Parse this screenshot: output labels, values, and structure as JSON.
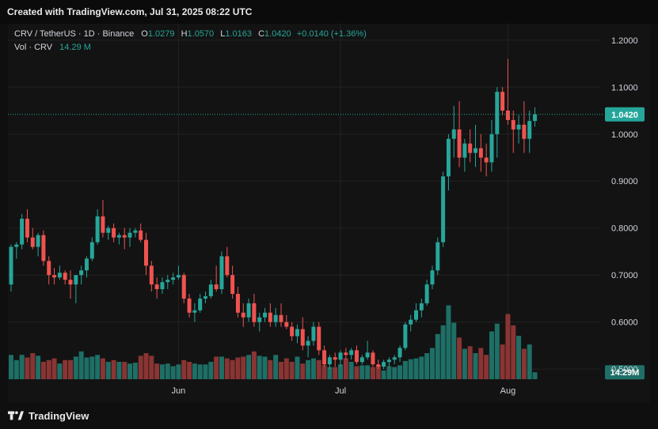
{
  "header": {
    "created_text": "Created with TradingView.com, Jul 31, 2025 08:22 UTC"
  },
  "legend": {
    "symbol": "CRV / TetherUS · 1D · Binance",
    "o_label": "O",
    "o_value": "1.0279",
    "h_label": "H",
    "h_value": "1.0570",
    "l_label": "L",
    "l_value": "1.0163",
    "c_label": "C",
    "c_value": "1.0420",
    "change": "+0.0140 (+1.36%)",
    "vol_label": "Vol · CRV",
    "vol_value": "14.29 M"
  },
  "footer": {
    "brand": "TradingView"
  },
  "colors": {
    "up": "#26a69a",
    "down": "#ef5350",
    "vol_up": "#1e6f66",
    "vol_down": "#8a3434",
    "grid": "#222222",
    "price_line": "#26a69a"
  },
  "chart_data": {
    "type": "candlestick",
    "symbol": "CRV / TetherUS",
    "interval": "1D",
    "exchange": "Binance",
    "y_ticks": [
      "1.2000",
      "1.1000",
      "1.0000",
      "0.9000",
      "0.8000",
      "0.7000",
      "0.6000",
      "0.5000"
    ],
    "ylim": [
      0.475,
      1.235
    ],
    "x_ticks": [
      {
        "label": "Jun",
        "index": 31
      },
      {
        "label": "Jul",
        "index": 61
      },
      {
        "label": "Aug",
        "index": 92
      }
    ],
    "last_price_label": "1.0420",
    "last_price": 1.042,
    "last_volume_label": "14.29M",
    "volume_max": 1.0,
    "candles": [
      [
        0.68,
        0.765,
        0.665,
        0.76,
        0.28
      ],
      [
        0.76,
        0.77,
        0.735,
        0.765,
        0.22
      ],
      [
        0.765,
        0.83,
        0.755,
        0.82,
        0.28
      ],
      [
        0.82,
        0.84,
        0.77,
        0.78,
        0.25
      ],
      [
        0.78,
        0.8,
        0.755,
        0.76,
        0.3
      ],
      [
        0.76,
        0.79,
        0.74,
        0.785,
        0.27
      ],
      [
        0.785,
        0.795,
        0.72,
        0.73,
        0.2
      ],
      [
        0.73,
        0.74,
        0.68,
        0.7,
        0.22
      ],
      [
        0.7,
        0.715,
        0.68,
        0.695,
        0.24
      ],
      [
        0.695,
        0.72,
        0.69,
        0.705,
        0.18
      ],
      [
        0.705,
        0.71,
        0.68,
        0.69,
        0.22
      ],
      [
        0.69,
        0.71,
        0.65,
        0.68,
        0.22
      ],
      [
        0.68,
        0.7,
        0.64,
        0.7,
        0.26
      ],
      [
        0.7,
        0.72,
        0.68,
        0.71,
        0.32
      ],
      [
        0.71,
        0.74,
        0.695,
        0.735,
        0.25
      ],
      [
        0.735,
        0.78,
        0.73,
        0.77,
        0.26
      ],
      [
        0.77,
        0.84,
        0.765,
        0.825,
        0.28
      ],
      [
        0.825,
        0.86,
        0.78,
        0.79,
        0.24
      ],
      [
        0.79,
        0.805,
        0.775,
        0.8,
        0.2
      ],
      [
        0.8,
        0.81,
        0.77,
        0.78,
        0.22
      ],
      [
        0.78,
        0.79,
        0.765,
        0.785,
        0.2
      ],
      [
        0.785,
        0.8,
        0.755,
        0.78,
        0.2
      ],
      [
        0.78,
        0.8,
        0.76,
        0.79,
        0.18
      ],
      [
        0.79,
        0.8,
        0.78,
        0.795,
        0.19
      ],
      [
        0.795,
        0.81,
        0.77,
        0.775,
        0.27
      ],
      [
        0.775,
        0.79,
        0.7,
        0.72,
        0.3
      ],
      [
        0.72,
        0.73,
        0.665,
        0.68,
        0.27
      ],
      [
        0.68,
        0.695,
        0.65,
        0.67,
        0.18
      ],
      [
        0.67,
        0.695,
        0.66,
        0.685,
        0.17
      ],
      [
        0.685,
        0.7,
        0.67,
        0.69,
        0.18
      ],
      [
        0.69,
        0.705,
        0.68,
        0.695,
        0.15
      ],
      [
        0.695,
        0.72,
        0.69,
        0.7,
        0.17
      ],
      [
        0.7,
        0.705,
        0.64,
        0.65,
        0.22
      ],
      [
        0.65,
        0.66,
        0.61,
        0.62,
        0.2
      ],
      [
        0.62,
        0.64,
        0.6,
        0.625,
        0.18
      ],
      [
        0.625,
        0.66,
        0.62,
        0.65,
        0.17
      ],
      [
        0.65,
        0.665,
        0.64,
        0.655,
        0.17
      ],
      [
        0.655,
        0.69,
        0.65,
        0.68,
        0.2
      ],
      [
        0.68,
        0.72,
        0.665,
        0.67,
        0.26
      ],
      [
        0.67,
        0.75,
        0.66,
        0.74,
        0.26
      ],
      [
        0.74,
        0.76,
        0.695,
        0.7,
        0.24
      ],
      [
        0.7,
        0.72,
        0.65,
        0.66,
        0.22
      ],
      [
        0.66,
        0.675,
        0.61,
        0.62,
        0.25
      ],
      [
        0.62,
        0.64,
        0.59,
        0.61,
        0.26
      ],
      [
        0.61,
        0.65,
        0.6,
        0.64,
        0.28
      ],
      [
        0.64,
        0.66,
        0.59,
        0.6,
        0.32
      ],
      [
        0.6,
        0.62,
        0.58,
        0.61,
        0.27
      ],
      [
        0.61,
        0.63,
        0.6,
        0.62,
        0.26
      ],
      [
        0.62,
        0.64,
        0.59,
        0.6,
        0.22
      ],
      [
        0.6,
        0.63,
        0.59,
        0.615,
        0.28
      ],
      [
        0.615,
        0.64,
        0.59,
        0.6,
        0.2
      ],
      [
        0.6,
        0.615,
        0.585,
        0.59,
        0.24
      ],
      [
        0.59,
        0.6,
        0.56,
        0.57,
        0.2
      ],
      [
        0.57,
        0.595,
        0.555,
        0.585,
        0.26
      ],
      [
        0.585,
        0.61,
        0.54,
        0.55,
        0.18
      ],
      [
        0.55,
        0.57,
        0.525,
        0.56,
        0.22
      ],
      [
        0.56,
        0.6,
        0.55,
        0.59,
        0.24
      ],
      [
        0.59,
        0.6,
        0.53,
        0.54,
        0.22
      ],
      [
        0.54,
        0.55,
        0.505,
        0.51,
        0.16
      ],
      [
        0.51,
        0.53,
        0.5,
        0.525,
        0.14
      ],
      [
        0.525,
        0.535,
        0.505,
        0.52,
        0.14
      ],
      [
        0.52,
        0.54,
        0.505,
        0.535,
        0.17
      ],
      [
        0.535,
        0.545,
        0.52,
        0.53,
        0.24
      ],
      [
        0.53,
        0.545,
        0.52,
        0.54,
        0.2
      ],
      [
        0.54,
        0.55,
        0.51,
        0.515,
        0.15
      ],
      [
        0.515,
        0.53,
        0.51,
        0.525,
        0.16
      ],
      [
        0.525,
        0.56,
        0.52,
        0.535,
        0.16
      ],
      [
        0.535,
        0.54,
        0.505,
        0.51,
        0.14
      ],
      [
        0.51,
        0.52,
        0.5,
        0.505,
        0.16
      ],
      [
        0.505,
        0.52,
        0.5,
        0.515,
        0.1
      ],
      [
        0.515,
        0.525,
        0.505,
        0.52,
        0.15
      ],
      [
        0.52,
        0.53,
        0.51,
        0.525,
        0.14
      ],
      [
        0.525,
        0.55,
        0.515,
        0.545,
        0.16
      ],
      [
        0.545,
        0.6,
        0.54,
        0.595,
        0.21
      ],
      [
        0.595,
        0.615,
        0.58,
        0.605,
        0.23
      ],
      [
        0.605,
        0.64,
        0.6,
        0.625,
        0.24
      ],
      [
        0.625,
        0.65,
        0.61,
        0.64,
        0.26
      ],
      [
        0.64,
        0.69,
        0.635,
        0.68,
        0.3
      ],
      [
        0.68,
        0.72,
        0.67,
        0.71,
        0.36
      ],
      [
        0.71,
        0.78,
        0.7,
        0.77,
        0.52
      ],
      [
        0.77,
        0.92,
        0.76,
        0.91,
        0.62
      ],
      [
        0.91,
        1.0,
        0.88,
        0.99,
        0.85
      ],
      [
        0.99,
        1.06,
        0.95,
        1.01,
        0.65
      ],
      [
        1.01,
        1.07,
        0.93,
        0.95,
        0.48
      ],
      [
        0.95,
        0.99,
        0.92,
        0.98,
        0.35
      ],
      [
        0.98,
        1.01,
        0.94,
        0.96,
        0.38
      ],
      [
        0.96,
        1.02,
        0.93,
        0.97,
        0.3
      ],
      [
        0.97,
        1.0,
        0.92,
        0.95,
        0.36
      ],
      [
        0.95,
        0.98,
        0.91,
        0.94,
        0.28
      ],
      [
        0.94,
        1.03,
        0.92,
        1.0,
        0.55
      ],
      [
        1.0,
        1.1,
        0.95,
        1.09,
        0.64
      ],
      [
        1.09,
        1.1,
        1.04,
        1.05,
        0.4
      ],
      [
        1.05,
        1.16,
        1.02,
        1.03,
        0.75
      ],
      [
        1.03,
        1.05,
        0.96,
        1.01,
        0.62
      ],
      [
        1.01,
        1.04,
        0.98,
        1.02,
        0.5
      ],
      [
        1.02,
        1.07,
        0.96,
        0.99,
        0.35
      ],
      [
        0.99,
        1.05,
        0.96,
        1.028,
        0.4
      ],
      [
        1.028,
        1.057,
        1.016,
        1.042,
        0.08
      ]
    ]
  }
}
